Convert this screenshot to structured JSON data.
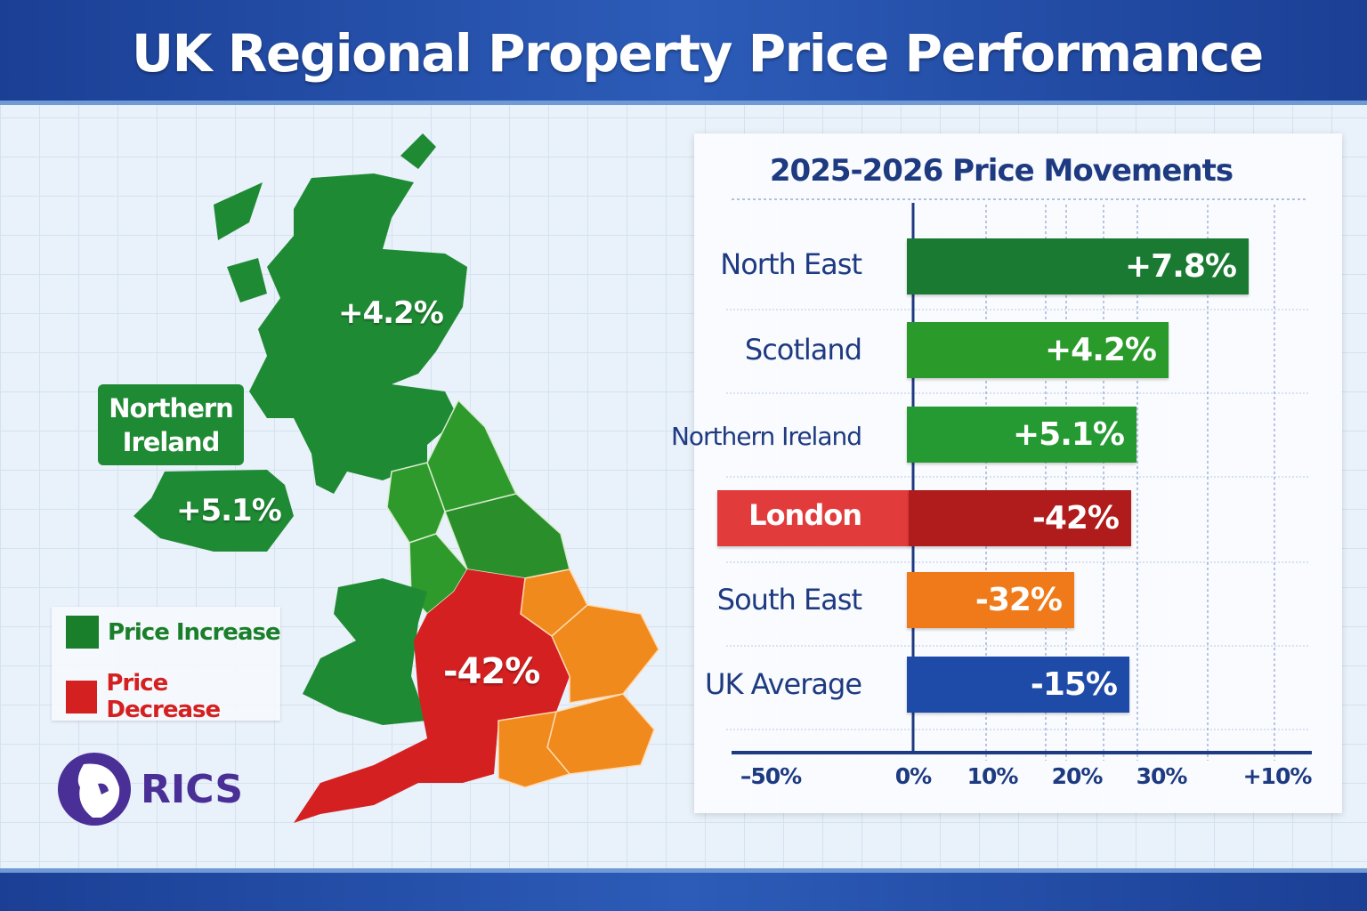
{
  "title": "UK Regional Property Price Performance",
  "map": {
    "scotland_label": "+4.2%",
    "ni_name": "Northern Ireland",
    "ni_name_lines": [
      "Northern",
      "Ireland"
    ],
    "ni_label": "+5.1%",
    "midlands_label": "-42%",
    "colors": {
      "increase": "#1f8a34",
      "increase_light": "#2e9a2c",
      "decrease": "#d42020",
      "south_east": "#f08a1c"
    }
  },
  "legend": {
    "items": [
      {
        "label": "Price Increase",
        "color": "#1a7f2a"
      },
      {
        "label": "Price Decrease",
        "color": "#d42020"
      }
    ]
  },
  "logo": {
    "text": "RICS",
    "color": "#4a2f96"
  },
  "chart_data": {
    "type": "bar",
    "orientation": "horizontal",
    "title": "2025-2026 Price Movements",
    "categories": [
      "North East",
      "Scotland",
      "Northern Ireland",
      "London",
      "South East",
      "UK Average"
    ],
    "values": [
      7.8,
      4.2,
      5.1,
      -42,
      -32,
      -15
    ],
    "data_labels": [
      "+7.8%",
      "+4.2%",
      "+5.1%",
      "-42%",
      "-32%",
      "-15%"
    ],
    "bar_colors": [
      "#1a7a32",
      "#2a9a2a",
      "#259a32",
      "#b01c1c",
      "#f07a1a",
      "#1e4aa8"
    ],
    "x_tick_labels": [
      "–50%",
      "0%",
      "10%",
      "20%",
      "30%",
      "+10%"
    ],
    "grid": true
  }
}
